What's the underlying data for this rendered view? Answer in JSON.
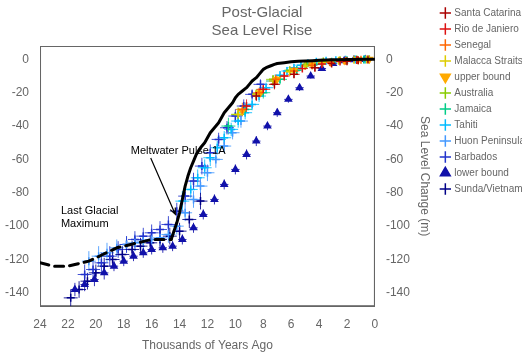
{
  "chart_data": {
    "type": "scatter",
    "title": "Post-Glacial\nSea Level Rise",
    "xlabel": "Thousands of Years Ago",
    "ylabel": "Sea Level Change (m)",
    "xlim": [
      24,
      0
    ],
    "ylim": [
      -148,
      8
    ],
    "y2lim": [
      -148,
      8
    ],
    "xticks": [
      24,
      22,
      20,
      18,
      16,
      14,
      12,
      10,
      8,
      6,
      4,
      2,
      0
    ],
    "yticks": [
      0,
      -20,
      -40,
      -60,
      -80,
      -100,
      -120,
      -140
    ],
    "y2ticks": [
      0,
      -20,
      -40,
      -60,
      -80,
      -100,
      -120,
      -140
    ],
    "grid": false,
    "legend": "upper right",
    "series": [
      {
        "name": "Santa Catarina",
        "type": "scatter",
        "color": "#aa0000",
        "marker": "plus",
        "x": [
          8.5,
          7.2,
          5.8,
          4.3,
          3.1,
          2.0,
          1.2,
          0.5
        ],
        "y": [
          -22,
          -15,
          -9,
          -5,
          -2.5,
          -1.2,
          -0.5,
          -0.1
        ],
        "xerr": [
          0.4,
          0.4,
          0.4,
          0.4,
          0.3,
          0.3,
          0.3,
          0.2
        ],
        "yerr": [
          3,
          3,
          2,
          2,
          1.5,
          1,
          1,
          0.8
        ]
      },
      {
        "name": "Rio de Janiero",
        "type": "scatter",
        "color": "#dd1111",
        "marker": "plus",
        "x": [
          9.2,
          8.0,
          6.5,
          5.2,
          3.8,
          2.5,
          1.3
        ],
        "y": [
          -28,
          -18,
          -10,
          -5.5,
          -2.8,
          -1.3,
          -0.4
        ],
        "xerr": [
          0.5,
          0.5,
          0.4,
          0.4,
          0.3,
          0.3,
          0.3
        ],
        "yerr": [
          4,
          3,
          3,
          2,
          1.5,
          1,
          0.8
        ]
      },
      {
        "name": "Senegal",
        "type": "scatter",
        "color": "#ff6600",
        "marker": "plus",
        "x": [
          9.5,
          8.3,
          7.1,
          5.8,
          4.5,
          3.2,
          2.1,
          1.0
        ],
        "y": [
          -30,
          -20,
          -12,
          -7,
          -3.5,
          -1.8,
          -0.8,
          -0.2
        ],
        "xerr": [
          0.5,
          0.5,
          0.5,
          0.4,
          0.4,
          0.3,
          0.3,
          0.2
        ],
        "yerr": [
          4,
          3,
          3,
          2.5,
          2,
          1.5,
          1,
          0.8
        ]
      },
      {
        "name": "Malacca Straits",
        "type": "scatter",
        "color": "#ddcc00",
        "marker": "plus",
        "x": [
          9.8,
          8.5,
          7.3,
          6.1,
          5.0,
          3.8,
          2.6,
          1.5,
          0.6
        ],
        "y": [
          -33,
          -21,
          -13,
          -7.5,
          -4,
          -2,
          -0.9,
          -0.3,
          -0.05
        ],
        "xerr": [
          0.5,
          0.5,
          0.5,
          0.4,
          0.4,
          0.3,
          0.3,
          0.3,
          0.2
        ],
        "yerr": [
          4,
          3,
          3,
          2.5,
          2,
          1.5,
          1,
          0.8,
          0.5
        ]
      },
      {
        "name": "upper bound",
        "type": "scatter",
        "color": "#ffaa00",
        "marker": "triangle_down",
        "x": [
          9.5,
          8.2,
          7.0,
          5.8,
          4.5,
          3.2,
          2.2,
          1.2,
          0.4
        ],
        "y": [
          -31,
          -20,
          -12,
          -6.5,
          -3.2,
          -1.5,
          -0.7,
          -0.2,
          0
        ],
        "xerr": [
          0.3,
          0.3,
          0.3,
          0.3,
          0.3,
          0.3,
          0.2,
          0.2,
          0.2
        ],
        "yerr": [
          3,
          2.5,
          2,
          1.5,
          1.2,
          1,
          0.8,
          0.5,
          0.3
        ]
      },
      {
        "name": "Australia",
        "type": "scatter",
        "color": "#88cc00",
        "marker": "plus",
        "x": [
          9.8,
          8.5,
          7.3,
          6.1,
          4.9,
          3.7,
          2.5,
          1.3,
          0.4
        ],
        "y": [
          -33,
          -21,
          -12,
          -6.5,
          -3,
          -1.3,
          -0.5,
          -0.15,
          0
        ],
        "xerr": [
          0.5,
          0.5,
          0.5,
          0.4,
          0.4,
          0.3,
          0.3,
          0.2,
          0.2
        ],
        "yerr": [
          4,
          3,
          2.5,
          2,
          1.5,
          1,
          0.8,
          0.5,
          0.3
        ]
      },
      {
        "name": "Jamaica",
        "type": "scatter",
        "color": "#00cc88",
        "marker": "plus",
        "x": [
          10.5,
          9.3,
          8.0,
          6.8,
          5.6,
          4.3,
          3.1,
          2.0,
          0.8
        ],
        "y": [
          -40,
          -30,
          -20,
          -12,
          -6.5,
          -3,
          -1.4,
          -0.5,
          -0.1
        ],
        "xerr": [
          0.5,
          0.5,
          0.5,
          0.5,
          0.4,
          0.4,
          0.3,
          0.3,
          0.2
        ],
        "yerr": [
          5,
          4,
          3.5,
          3,
          2.5,
          2,
          1.5,
          1,
          0.8
        ]
      },
      {
        "name": "Tahiti",
        "type": "scatter",
        "color": "#00bbff",
        "marker": "plus",
        "x": [
          13.8,
          13.2,
          12.7,
          12.2,
          11.8,
          11.3,
          10.8,
          10.3,
          9.8,
          9.3,
          8.8,
          8.3,
          7.8,
          7.3,
          6.8,
          6.3,
          5.8,
          5.3,
          4.8,
          4.2,
          3.5,
          2.8,
          2.1,
          1.4,
          0.7
        ],
        "y": [
          -85,
          -78,
          -71,
          -65,
          -59,
          -53,
          -47,
          -42,
          -37,
          -32,
          -27,
          -22,
          -17,
          -13,
          -9.5,
          -7,
          -5,
          -3.5,
          -2.4,
          -1.5,
          -0.9,
          -0.5,
          -0.25,
          -0.1,
          -0.02
        ],
        "xerr": [
          0.5,
          0.5,
          0.5,
          0.5,
          0.5,
          0.5,
          0.5,
          0.5,
          0.5,
          0.5,
          0.5,
          0.5,
          0.5,
          0.5,
          0.4,
          0.4,
          0.4,
          0.4,
          0.3,
          0.3,
          0.3,
          0.3,
          0.3,
          0.2,
          0.2
        ],
        "yerr": [
          6,
          5,
          5,
          5,
          5,
          4,
          4,
          4,
          4,
          4,
          3.5,
          3.5,
          3,
          3,
          2.5,
          2.5,
          2,
          2,
          1.5,
          1.5,
          1,
          1,
          0.8,
          0.5,
          0.3
        ]
      },
      {
        "name": "Huon Peninsula",
        "type": "scatter",
        "color": "#4499ff",
        "marker": "plus",
        "x": [
          20.5,
          19.8,
          19.2,
          18.5,
          17.8,
          17.2,
          16.6,
          16.0,
          15.4,
          14.8,
          14.2,
          13.6,
          13.0,
          12.5,
          12.0,
          11.4,
          10.8,
          10.2,
          9.6
        ],
        "y": [
          -121,
          -118,
          -116,
          -113,
          -111,
          -110,
          -109,
          -108,
          -107,
          -105,
          -100,
          -92,
          -84,
          -76,
          -68,
          -60,
          -52,
          -44,
          -37
        ],
        "xerr": [
          0.5,
          0.5,
          0.5,
          0.5,
          0.5,
          0.5,
          0.5,
          0.5,
          0.5,
          0.5,
          0.5,
          0.5,
          0.5,
          0.5,
          0.5,
          0.5,
          0.5,
          0.5,
          0.5
        ],
        "yerr": [
          6,
          6,
          6,
          5,
          5,
          5,
          5,
          5,
          5,
          5,
          5,
          5,
          5,
          5,
          5,
          5,
          4,
          4,
          4
        ]
      },
      {
        "name": "Barbados",
        "type": "scatter",
        "color": "#2233cc",
        "marker": "plus",
        "x": [
          20.8,
          20.2,
          19.6,
          19.0,
          18.4,
          17.8,
          17.2,
          16.6,
          16.0,
          15.4,
          14.8,
          14.2,
          13.6,
          13.0,
          12.4,
          11.8,
          11.2,
          10.6,
          10.0,
          9.4,
          8.8,
          8.2
        ],
        "y": [
          -129,
          -126,
          -122,
          -118,
          -114,
          -111,
          -108,
          -106,
          -104,
          -102,
          -99,
          -91,
          -82,
          -73,
          -64,
          -56,
          -48,
          -41,
          -34,
          -28,
          -21,
          -15
        ],
        "xerr": [
          0.5,
          0.5,
          0.5,
          0.5,
          0.5,
          0.5,
          0.5,
          0.5,
          0.5,
          0.5,
          0.5,
          0.5,
          0.5,
          0.5,
          0.5,
          0.5,
          0.5,
          0.5,
          0.5,
          0.5,
          0.5,
          0.5
        ],
        "yerr": [
          6,
          6,
          6,
          6,
          5,
          5,
          5,
          5,
          5,
          5,
          5,
          5,
          5,
          5,
          5,
          5,
          4,
          4,
          4,
          4,
          3,
          3
        ]
      },
      {
        "name": "lower bound",
        "type": "scatter",
        "color": "#1111aa",
        "marker": "triangle_up",
        "x": [
          21.5,
          20.8,
          20.1,
          19.4,
          18.7,
          18.0,
          17.3,
          16.6,
          16.0,
          15.2,
          14.5,
          13.8,
          13.0,
          12.3,
          11.5,
          10.8,
          10.0,
          9.2,
          8.5,
          7.7,
          7.0,
          6.2,
          5.4,
          4.6,
          3.8,
          3.0,
          2.2,
          1.5,
          0.7
        ],
        "y": [
          -138,
          -135,
          -132,
          -128,
          -124,
          -121,
          -118,
          -116,
          -114,
          -113,
          -112,
          -108,
          -101,
          -93,
          -84,
          -75,
          -66,
          -57,
          -49,
          -40,
          -32,
          -24,
          -17,
          -10,
          -5.5,
          -2.5,
          -0.9,
          -0.3,
          -0.02
        ],
        "xerr": [
          0.3,
          0.3,
          0.3,
          0.3,
          0.3,
          0.3,
          0.3,
          0.3,
          0.3,
          0.3,
          0.3,
          0.3,
          0.3,
          0.3,
          0.3,
          0.3,
          0.3,
          0.3,
          0.3,
          0.3,
          0.3,
          0.3,
          0.3,
          0.3,
          0.3,
          0.3,
          0.3,
          0.3,
          0.3
        ],
        "yerr": [
          4,
          4,
          4,
          4,
          3,
          3,
          3,
          3,
          3,
          3,
          3,
          3,
          3,
          3,
          3,
          3,
          3,
          3,
          3,
          2.5,
          2.5,
          2,
          2,
          1.5,
          1.2,
          1,
          0.8,
          0.5,
          0.3
        ]
      },
      {
        "name": "Sunda/Vietnam Shelf",
        "type": "scatter",
        "color": "#000088",
        "marker": "plus",
        "x": [
          21.8,
          21.2,
          20.6,
          20.0,
          19.4,
          18.8,
          18.1,
          17.4,
          16.8,
          16.1,
          15.4,
          14.7,
          14.0,
          13.3,
          12.5
        ],
        "y": [
          -143,
          -138,
          -133,
          -128,
          -124,
          -120,
          -117,
          -114,
          -112,
          -110,
          -108,
          -106,
          -103,
          -96,
          -85
        ],
        "xerr": [
          0.5,
          0.5,
          0.5,
          0.5,
          0.5,
          0.5,
          0.5,
          0.5,
          0.5,
          0.5,
          0.5,
          0.5,
          0.5,
          0.5,
          0.5
        ],
        "yerr": [
          5,
          5,
          5,
          5,
          5,
          5,
          5,
          5,
          5,
          5,
          5,
          5,
          5,
          5,
          5
        ]
      },
      {
        "type": "line",
        "color": "black",
        "line_style": "solid",
        "x": [
          14.6,
          14.4,
          14.2,
          14.0,
          13.8,
          13.6,
          13.4,
          13.2,
          13.0,
          12.8,
          12.5,
          12.2,
          12.0,
          11.8,
          11.5,
          11.2,
          11.0,
          10.8,
          10.5,
          10.2,
          10.0,
          9.8,
          9.5,
          9.2,
          9.0,
          8.8,
          8.5,
          8.3,
          8.1,
          8.0,
          7.8,
          7.5,
          7.2,
          7.0,
          6.5,
          6.0,
          5.5,
          5.0,
          4.5,
          4.0,
          3.5,
          3.0,
          2.5,
          2.0,
          1.5,
          1.0,
          0.5,
          0.0
        ],
        "y": [
          -108,
          -103,
          -98,
          -92,
          -84,
          -76,
          -70,
          -65,
          -61,
          -57,
          -53,
          -50,
          -47,
          -44,
          -41,
          -38,
          -35,
          -32,
          -29,
          -26,
          -23,
          -21,
          -19,
          -17,
          -15,
          -13,
          -11,
          -9,
          -7,
          -6,
          -5,
          -4,
          -3,
          -2.5,
          -2,
          -1.5,
          -1.2,
          -1,
          -0.8,
          -0.6,
          -0.4,
          -0.3,
          -0.2,
          -0.1,
          -0.05,
          0,
          0,
          0
        ]
      },
      {
        "type": "line",
        "color": "black",
        "line_style": "dashed",
        "x": [
          24.0,
          23.5,
          23.0,
          22.5,
          22.0,
          21.5,
          21.0,
          20.5,
          20.0,
          19.5,
          19.0,
          18.5,
          18.0,
          17.5,
          17.0,
          16.5,
          16.0,
          15.5,
          15.0,
          14.6
        ],
        "y": [
          -122,
          -123,
          -124,
          -124,
          -124,
          -123,
          -122,
          -121,
          -119,
          -117,
          -115,
          -113,
          -112,
          -111,
          -110,
          -109,
          -108,
          -108,
          -108,
          -108
        ]
      }
    ],
    "annotations": [
      {
        "text": "Meltwater Pulse 1A",
        "x": 17.5,
        "y": -58,
        "arrow_to": [
          14.3,
          -93
        ]
      },
      {
        "text": "Last Glacial\nMaximum",
        "x": 22.5,
        "y": -95
      }
    ]
  }
}
